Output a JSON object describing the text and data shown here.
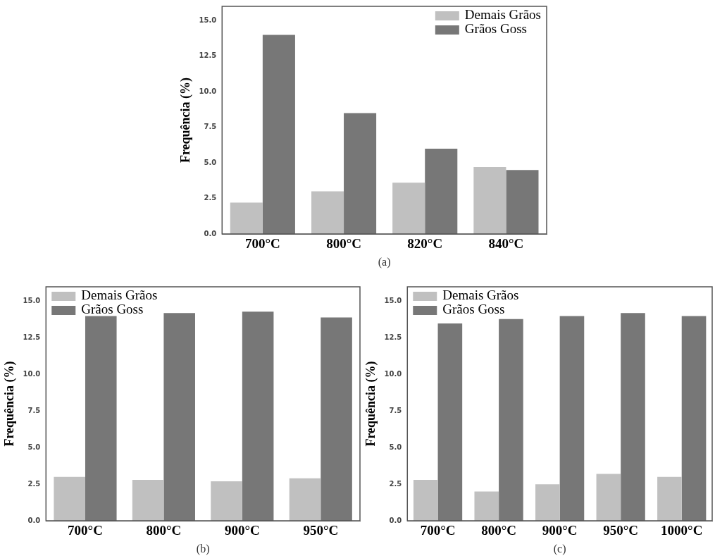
{
  "chart_data": [
    {
      "type": "bar",
      "xlabel": "(a)",
      "ylabel": "Frequência (%)",
      "categories": [
        "700°C",
        "800°C",
        "820°C",
        "840°C"
      ],
      "series": [
        {
          "name": "Demais Grãos",
          "color": "#c0c0c0",
          "values": [
            2.2,
            3.0,
            3.6,
            4.7
          ]
        },
        {
          "name": "Grãos Goss",
          "color": "#777777",
          "values": [
            14.0,
            8.5,
            6.0,
            4.5
          ]
        }
      ],
      "ylim": [
        0,
        16
      ],
      "yticks": [
        {
          "value": 0,
          "label": "0.0"
        },
        {
          "value": 2.5,
          "label": "2.5"
        },
        {
          "value": 5,
          "label": "5.0"
        },
        {
          "value": 7.5,
          "label": "7.5"
        },
        {
          "value": 10,
          "label": "10.0"
        },
        {
          "value": 12.5,
          "label": "12.5"
        },
        {
          "value": 15,
          "label": "15.0"
        }
      ],
      "legend": "top right",
      "grid": false
    },
    {
      "type": "bar",
      "xlabel": "(b)",
      "ylabel": "Frequência (%)",
      "categories": [
        "700°C",
        "800°C",
        "900°C",
        "950°C"
      ],
      "series": [
        {
          "name": "Demais Grãos",
          "color": "#c0c0c0",
          "values": [
            3.0,
            2.8,
            2.7,
            2.9
          ]
        },
        {
          "name": "Grãos Goss",
          "color": "#777777",
          "values": [
            14.0,
            14.2,
            14.3,
            13.9
          ]
        }
      ],
      "ylim": [
        0,
        16
      ],
      "yticks": [
        {
          "value": 0,
          "label": "0.0"
        },
        {
          "value": 2.5,
          "label": "2.5"
        },
        {
          "value": 5,
          "label": "5.0"
        },
        {
          "value": 7.5,
          "label": "7.5"
        },
        {
          "value": 10,
          "label": "10.0"
        },
        {
          "value": 12.5,
          "label": "12.5"
        },
        {
          "value": 15,
          "label": "15.0"
        }
      ],
      "legend": "top left",
      "grid": false
    },
    {
      "type": "bar",
      "xlabel": "(c)",
      "ylabel": "Frequência (%)",
      "categories": [
        "700°C",
        "800°C",
        "900°C",
        "950°C",
        "1000°C"
      ],
      "series": [
        {
          "name": "Demais Grãos",
          "color": "#c0c0c0",
          "values": [
            2.8,
            2.0,
            2.5,
            3.2,
            3.0
          ]
        },
        {
          "name": "Grãos Goss",
          "color": "#777777",
          "values": [
            13.5,
            13.8,
            14.0,
            14.2,
            14.0
          ]
        }
      ],
      "ylim": [
        0,
        16
      ],
      "yticks": [
        {
          "value": 0,
          "label": "0.0"
        },
        {
          "value": 2.5,
          "label": "2.5"
        },
        {
          "value": 5,
          "label": "5.0"
        },
        {
          "value": 7.5,
          "label": "7.5"
        },
        {
          "value": 10,
          "label": "10.0"
        },
        {
          "value": 12.5,
          "label": "12.5"
        },
        {
          "value": 15,
          "label": "15.0"
        }
      ],
      "legend": "top left",
      "grid": false
    }
  ]
}
